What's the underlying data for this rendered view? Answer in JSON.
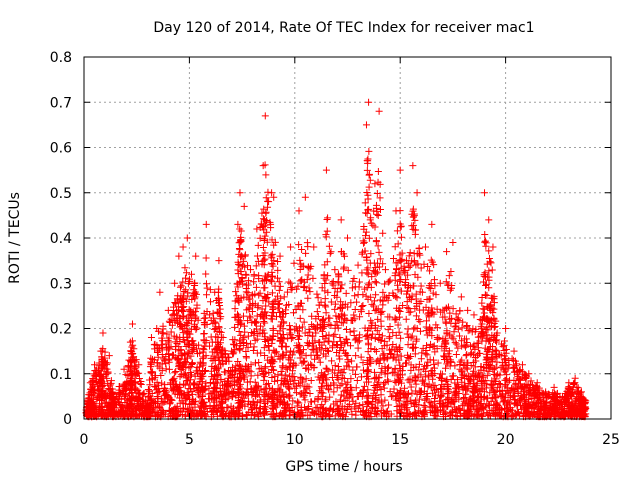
{
  "chart_data": {
    "type": "scatter",
    "title": "Day 120 of 2014, Rate Of TEC Index for receiver mac1",
    "xlabel": "GPS time / hours",
    "ylabel": "ROTI / TECUs",
    "xlim": [
      0,
      25
    ],
    "ylim": [
      0,
      0.8
    ],
    "xticks": [
      0,
      5,
      10,
      15,
      20,
      25
    ],
    "xtick_labels": [
      "0",
      "5",
      "10",
      "15",
      "20",
      "25"
    ],
    "yticks": [
      0,
      0.1,
      0.2,
      0.3,
      0.4,
      0.5,
      0.6,
      0.7,
      0.8
    ],
    "ytick_labels": [
      "0",
      "0.1",
      "0.2",
      "0.3",
      "0.4",
      "0.5",
      "0.6",
      "0.7",
      "0.8"
    ],
    "grid": true,
    "marker": "+",
    "series": [
      {
        "name": "ROTI",
        "color": "#ff0000",
        "x_range": [
          0,
          23.8
        ],
        "points": [
          [
            0.1,
            0.02
          ],
          [
            0.3,
            0.08
          ],
          [
            0.5,
            0.12
          ],
          [
            0.8,
            0.15
          ],
          [
            0.9,
            0.19
          ],
          [
            1.2,
            0.14
          ],
          [
            1.4,
            0.05
          ],
          [
            1.9,
            0.11
          ],
          [
            2.2,
            0.17
          ],
          [
            2.3,
            0.21
          ],
          [
            2.6,
            0.12
          ],
          [
            3.0,
            0.03
          ],
          [
            3.2,
            0.18
          ],
          [
            3.6,
            0.28
          ],
          [
            4.0,
            0.24
          ],
          [
            4.3,
            0.3
          ],
          [
            4.5,
            0.36
          ],
          [
            4.7,
            0.38
          ],
          [
            4.9,
            0.4
          ],
          [
            5.1,
            0.32
          ],
          [
            5.3,
            0.36
          ],
          [
            5.6,
            0.1
          ],
          [
            5.8,
            0.43
          ],
          [
            6.2,
            0.28
          ],
          [
            6.4,
            0.35
          ],
          [
            6.6,
            0.18
          ],
          [
            7.0,
            0.15
          ],
          [
            7.3,
            0.43
          ],
          [
            7.4,
            0.5
          ],
          [
            7.6,
            0.47
          ],
          [
            7.9,
            0.33
          ],
          [
            8.2,
            0.42
          ],
          [
            8.5,
            0.56
          ],
          [
            8.6,
            0.67
          ],
          [
            8.9,
            0.5
          ],
          [
            9.0,
            0.49
          ],
          [
            9.3,
            0.36
          ],
          [
            9.5,
            0.27
          ],
          [
            9.8,
            0.38
          ],
          [
            10.2,
            0.46
          ],
          [
            10.5,
            0.49
          ],
          [
            10.9,
            0.38
          ],
          [
            11.3,
            0.29
          ],
          [
            11.5,
            0.55
          ],
          [
            11.9,
            0.33
          ],
          [
            12.2,
            0.44
          ],
          [
            12.5,
            0.4
          ],
          [
            13.0,
            0.34
          ],
          [
            13.4,
            0.65
          ],
          [
            13.5,
            0.7
          ],
          [
            13.8,
            0.52
          ],
          [
            14.0,
            0.68
          ],
          [
            14.3,
            0.33
          ],
          [
            14.8,
            0.46
          ],
          [
            15.0,
            0.55
          ],
          [
            15.3,
            0.35
          ],
          [
            15.6,
            0.56
          ],
          [
            15.8,
            0.5
          ],
          [
            16.2,
            0.38
          ],
          [
            16.5,
            0.43
          ],
          [
            16.9,
            0.3
          ],
          [
            17.2,
            0.37
          ],
          [
            17.5,
            0.39
          ],
          [
            17.9,
            0.27
          ],
          [
            18.2,
            0.24
          ],
          [
            18.5,
            0.23
          ],
          [
            18.8,
            0.22
          ],
          [
            19.0,
            0.5
          ],
          [
            19.2,
            0.44
          ],
          [
            19.4,
            0.38
          ],
          [
            19.6,
            0.19
          ],
          [
            20.0,
            0.2
          ],
          [
            20.4,
            0.15
          ],
          [
            20.8,
            0.12
          ],
          [
            21.1,
            0.1
          ],
          [
            21.5,
            0.08
          ],
          [
            21.9,
            0.06
          ],
          [
            22.3,
            0.07
          ],
          [
            22.7,
            0.05
          ],
          [
            23.0,
            0.08
          ],
          [
            23.3,
            0.09
          ],
          [
            23.6,
            0.06
          ],
          [
            23.8,
            0.04
          ]
        ]
      }
    ]
  }
}
